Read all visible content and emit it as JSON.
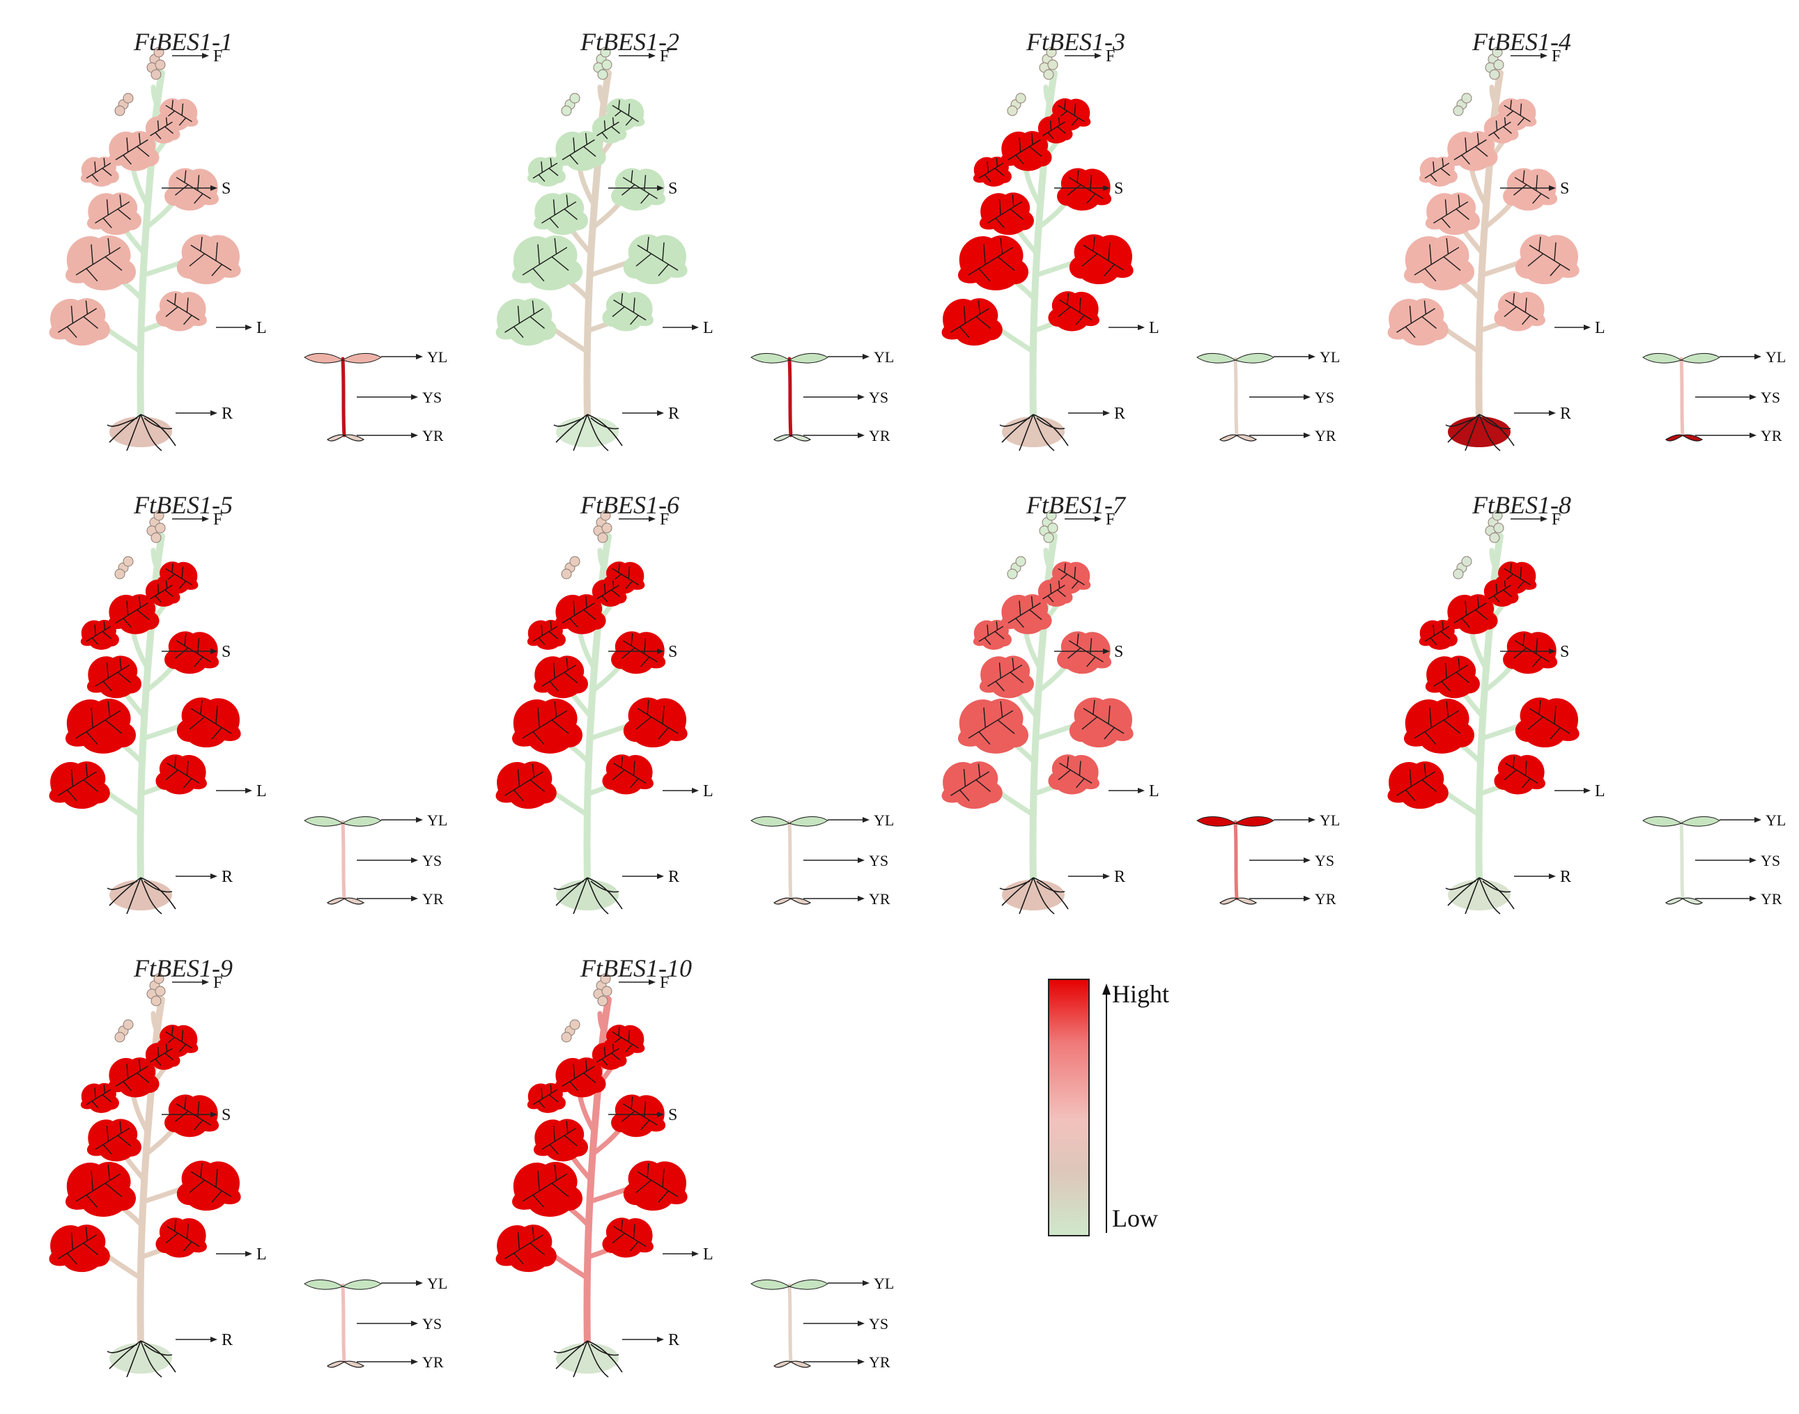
{
  "colors": {
    "low": "#cfe8cc",
    "mid": "#f2b5ae",
    "high": "#e60000"
  },
  "organ_labels": {
    "flower": "F",
    "stem": "S",
    "leaf": "L",
    "root": "R",
    "young_leaf": "YL",
    "young_stem": "YS",
    "young_root": "YR"
  },
  "panels": [
    {
      "gene": "FtBES1-1",
      "flower": "#e8c8bc",
      "leaf": "#edb3a9",
      "stem": "#cfe8cc",
      "root": "#e2c2b7",
      "young_leaf": "#edb3a9",
      "young_stem": "#c0101a",
      "young_root": "#e4cfc4"
    },
    {
      "gene": "FtBES1-2",
      "flower": "#d6ebd1",
      "leaf": "#c6e4c0",
      "stem": "#e0d2c2",
      "root": "#d6e9d1",
      "young_leaf": "#c6e4c0",
      "young_stem": "#c0101a",
      "young_root": "#d8e6d2"
    },
    {
      "gene": "FtBES1-3",
      "flower": "#dde6cf",
      "leaf": "#e60000",
      "stem": "#cfe8cc",
      "root": "#e2c7bb",
      "young_leaf": "#c6e4c0",
      "young_stem": "#e4d3c7",
      "young_root": "#e4cfc4"
    },
    {
      "gene": "FtBES1-4",
      "flower": "#d9e6d3",
      "leaf": "#efb3aa",
      "stem": "#e3cfc0",
      "root": "#b50d12",
      "young_leaf": "#c6e4c0",
      "young_stem": "#efbfbb",
      "young_root": "#b50d12"
    },
    {
      "gene": "FtBES1-5",
      "flower": "#e8cdbf",
      "leaf": "#e30000",
      "stem": "#cfe8cc",
      "root": "#e2c2b7",
      "young_leaf": "#c6e4c0",
      "young_stem": "#efbfbb",
      "young_root": "#e4cfc4"
    },
    {
      "gene": "FtBES1-6",
      "flower": "#e8cdbf",
      "leaf": "#e30000",
      "stem": "#cfe8cc",
      "root": "#cfe3c9",
      "young_leaf": "#c6e4c0",
      "young_stem": "#e4d3c7",
      "young_root": "#e4cfc4"
    },
    {
      "gene": "FtBES1-7",
      "flower": "#d6ebd1",
      "leaf": "#eb5e5c",
      "stem": "#cfe8cc",
      "root": "#e2c2b7",
      "young_leaf": "#d40000",
      "young_stem": "#e77a79",
      "young_root": "#e4cfc4"
    },
    {
      "gene": "FtBES1-8",
      "flower": "#d9e6d3",
      "leaf": "#e30000",
      "stem": "#cfe8cc",
      "root": "#d9e3cf",
      "young_leaf": "#c6e4c0",
      "young_stem": "#d9e6d3",
      "young_root": "#d9e6d3"
    },
    {
      "gene": "FtBES1-9",
      "flower": "#e8cdbf",
      "leaf": "#e30000",
      "stem": "#e3cfc0",
      "root": "#d6e5cf",
      "young_leaf": "#c6e4c0",
      "young_stem": "#efbfbb",
      "young_root": "#e4cfc4"
    },
    {
      "gene": "FtBES1-10",
      "flower": "#e8cdbf",
      "leaf": "#e30000",
      "stem": "#ec8f8f",
      "root": "#d6e5cf",
      "young_leaf": "#c6e4c0",
      "young_stem": "#e4d3c7",
      "young_root": "#e4cfc4"
    }
  ],
  "legend": {
    "high_label": "Hight",
    "low_label": "Low",
    "gradient_stops": [
      "#e60000",
      "#f07a7a",
      "#f2c2bd",
      "#ddc7ba",
      "#cfe8cc"
    ]
  }
}
